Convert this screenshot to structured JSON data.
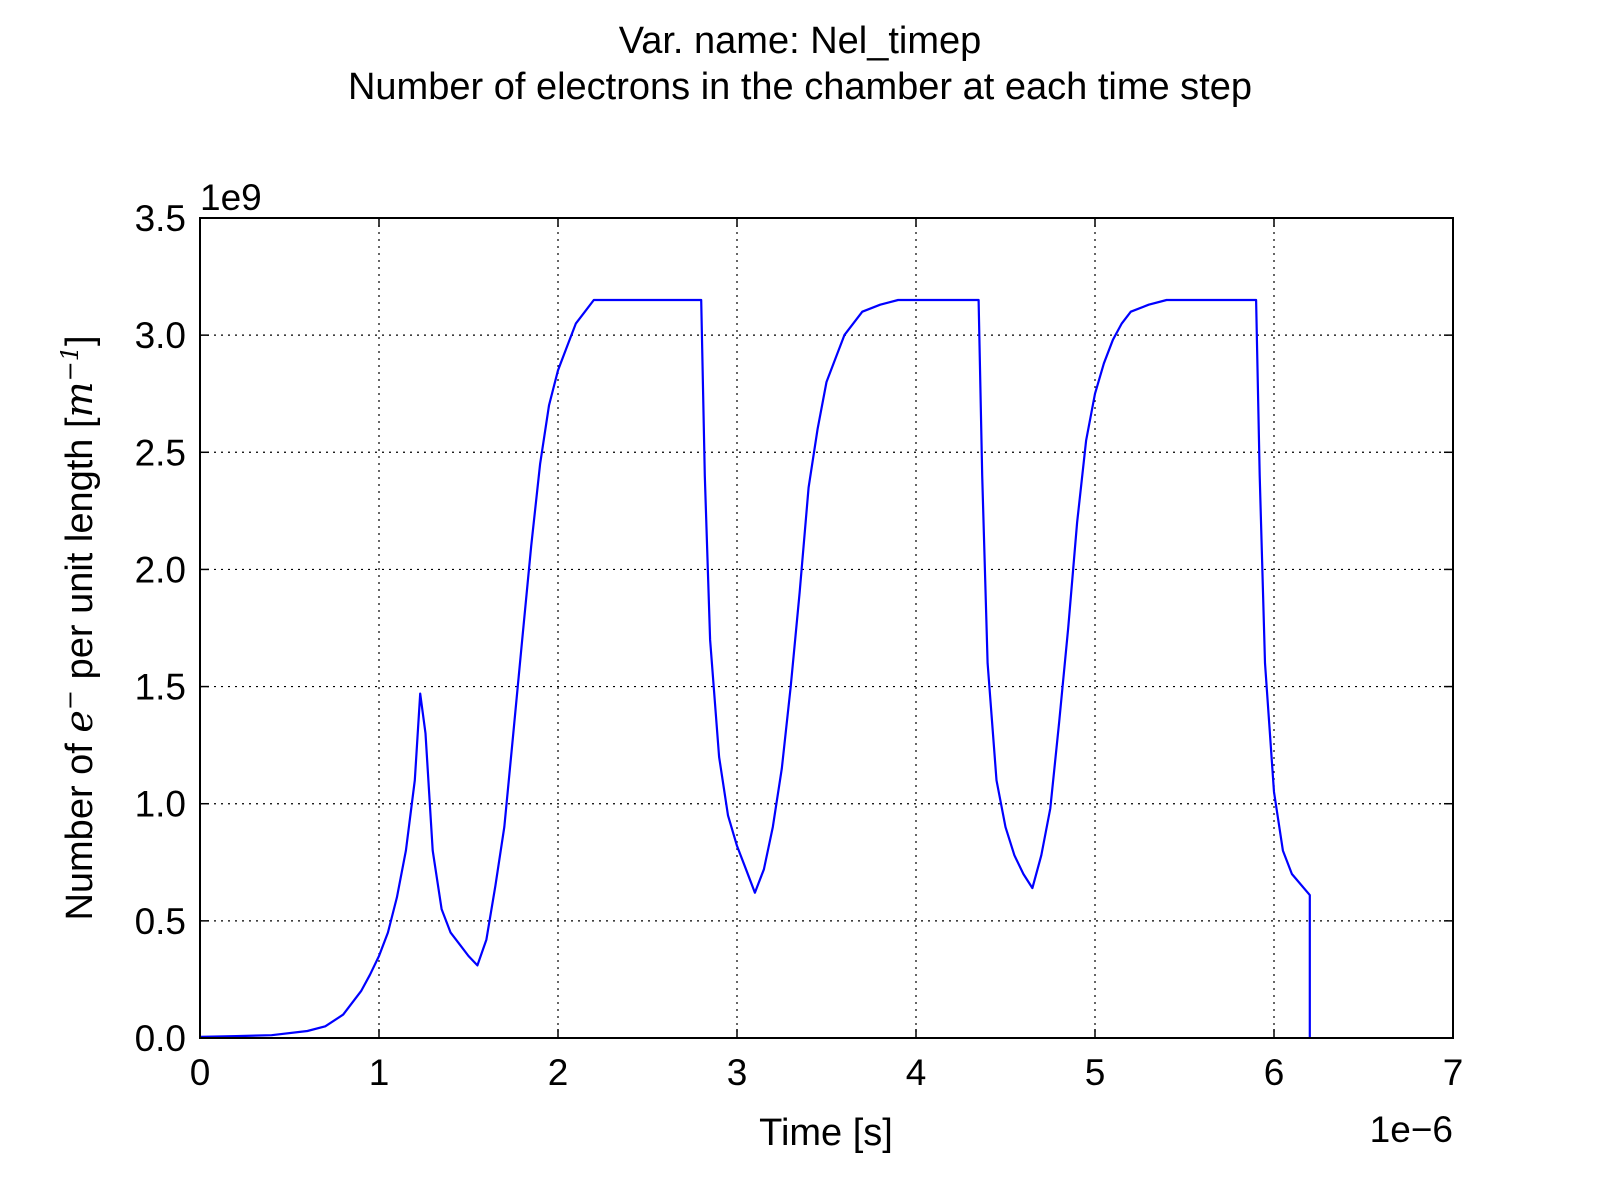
{
  "chart_data": {
    "type": "line",
    "title": "Var. name: Nel_timep",
    "subtitle": "Number of electrons in the chamber at each time step",
    "xlabel": "Time [s]",
    "ylabel_prefix": "Number of ",
    "ylabel_symbol": "e",
    "ylabel_symbol_sup": "−",
    "ylabel_middle": "  per unit length [",
    "ylabel_unit": "m",
    "ylabel_unit_sup": "−1",
    "ylabel_suffix": "]",
    "x_multiplier": "1e−6",
    "y_multiplier": "1e9",
    "xlim": [
      0,
      7e-06
    ],
    "ylim": [
      0,
      3500000000.0
    ],
    "xticks": [
      "0",
      "1",
      "2",
      "3",
      "4",
      "5",
      "6",
      "7"
    ],
    "yticks": [
      "0.0",
      "0.5",
      "1.0",
      "1.5",
      "2.0",
      "2.5",
      "3.0",
      "3.5"
    ],
    "grid": true,
    "line_color": "#0000ff",
    "series": [
      {
        "x": [
          0,
          2e-07,
          4e-07,
          6e-07,
          7e-07,
          8e-07,
          9e-07,
          9.5e-07,
          1e-06,
          1.05e-06,
          1.1e-06,
          1.15e-06,
          1.2e-06,
          1.23e-06,
          1.26e-06,
          1.3e-06,
          1.35e-06,
          1.4e-06,
          1.45e-06,
          1.5e-06,
          1.55e-06,
          1.6e-06,
          1.65e-06,
          1.7e-06,
          1.75e-06,
          1.8e-06,
          1.85e-06,
          1.9e-06,
          1.95e-06,
          2e-06,
          2.05e-06,
          2.1e-06,
          2.15e-06,
          2.2e-06,
          2.3e-06,
          2.4e-06,
          2.5e-06,
          2.6e-06,
          2.7e-06,
          2.8e-06,
          2.82e-06,
          2.85e-06,
          2.9e-06,
          2.95e-06,
          3e-06,
          3.05e-06,
          3.1e-06,
          3.15e-06,
          3.2e-06,
          3.25e-06,
          3.3e-06,
          3.35e-06,
          3.4e-06,
          3.45e-06,
          3.5e-06,
          3.55e-06,
          3.6e-06,
          3.7e-06,
          3.8e-06,
          3.9e-06,
          4e-06,
          4.1e-06,
          4.2e-06,
          4.3e-06,
          4.35e-06,
          4.37e-06,
          4.4e-06,
          4.45e-06,
          4.5e-06,
          4.55e-06,
          4.6e-06,
          4.65e-06,
          4.7e-06,
          4.75e-06,
          4.8e-06,
          4.85e-06,
          4.9e-06,
          4.95e-06,
          5e-06,
          5.05e-06,
          5.1e-06,
          5.15e-06,
          5.2e-06,
          5.3e-06,
          5.4e-06,
          5.5e-06,
          5.6e-06,
          5.7e-06,
          5.8e-06,
          5.9e-06,
          5.92e-06,
          5.95e-06,
          6e-06,
          6.05e-06,
          6.1e-06,
          6.2e-06,
          6.2e-06
        ],
        "y": [
          5000000.0,
          8000000.0,
          12000000.0,
          30000000.0,
          50000000.0,
          100000000.0,
          200000000.0,
          270000000.0,
          350000000.0,
          450000000.0,
          600000000.0,
          800000000.0,
          1100000000.0,
          1470000000.0,
          1300000000.0,
          800000000.0,
          550000000.0,
          450000000.0,
          400000000.0,
          350000000.0,
          310000000.0,
          420000000.0,
          650000000.0,
          900000000.0,
          1300000000.0,
          1700000000.0,
          2100000000.0,
          2450000000.0,
          2700000000.0,
          2850000000.0,
          2950000000.0,
          3050000000.0,
          3100000000.0,
          3150000000.0,
          3150000000.0,
          3150000000.0,
          3150000000.0,
          3150000000.0,
          3150000000.0,
          3150000000.0,
          2400000000.0,
          1700000000.0,
          1200000000.0,
          950000000.0,
          820000000.0,
          720000000.0,
          620000000.0,
          720000000.0,
          900000000.0,
          1150000000.0,
          1500000000.0,
          1900000000.0,
          2350000000.0,
          2600000000.0,
          2800000000.0,
          2900000000.0,
          3000000000.0,
          3100000000.0,
          3130000000.0,
          3150000000.0,
          3150000000.0,
          3150000000.0,
          3150000000.0,
          3150000000.0,
          3150000000.0,
          2400000000.0,
          1600000000.0,
          1100000000.0,
          900000000.0,
          780000000.0,
          700000000.0,
          640000000.0,
          780000000.0,
          980000000.0,
          1350000000.0,
          1750000000.0,
          2200000000.0,
          2550000000.0,
          2750000000.0,
          2880000000.0,
          2980000000.0,
          3050000000.0,
          3100000000.0,
          3130000000.0,
          3150000000.0,
          3150000000.0,
          3150000000.0,
          3150000000.0,
          3150000000.0,
          3150000000.0,
          2400000000.0,
          1600000000.0,
          1050000000.0,
          800000000.0,
          700000000.0,
          610000000.0,
          0.0
        ]
      }
    ]
  }
}
